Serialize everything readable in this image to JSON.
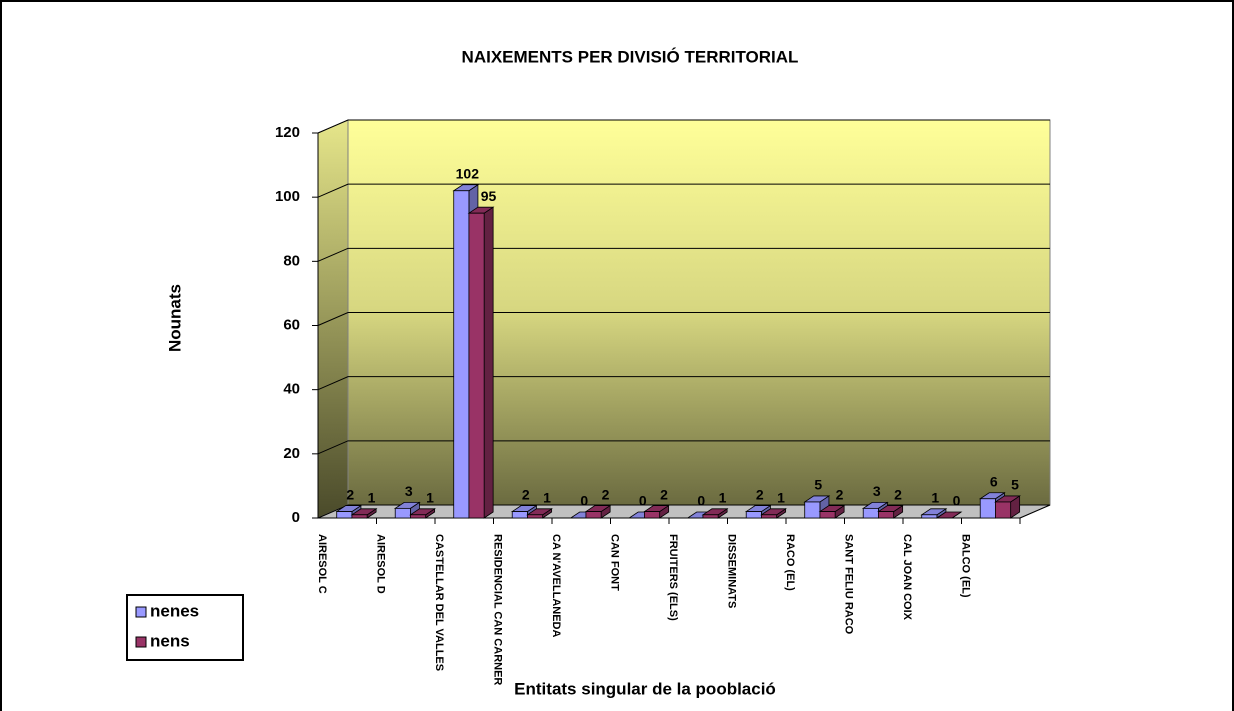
{
  "chart_data": {
    "type": "bar3d",
    "title": "NAIXEMENTS PER DIVISIÓ TERRITORIAL",
    "y_label": "Nounats",
    "x_label": "Entitats singular de la pooblació",
    "categories": [
      "AIRESOL C",
      "AIRESOL D",
      "CASTELLAR DEL VALLES",
      "RESIDENCIAL CAN CARNER",
      "CA N'AVELLANEDA",
      "CAN FONT",
      "FRUITERS (ELS)",
      "DISSEMINATS",
      "RACO (EL)",
      "SANT FELIU RACO",
      "CAL JOAN COIX",
      "BALCO (EL)"
    ],
    "series": [
      {
        "name": "nenes",
        "color": "#9999ff",
        "values": [
          2,
          3,
          102,
          2,
          0,
          0,
          0,
          2,
          5,
          3,
          1,
          6
        ]
      },
      {
        "name": "nens",
        "color": "#993366",
        "values": [
          1,
          1,
          95,
          1,
          2,
          2,
          1,
          1,
          2,
          2,
          0,
          5
        ]
      }
    ],
    "ylim": [
      0,
      120
    ],
    "yticks": [
      0,
      20,
      40,
      60,
      80,
      100,
      120
    ],
    "grid": true,
    "legend": "bottom-left"
  }
}
